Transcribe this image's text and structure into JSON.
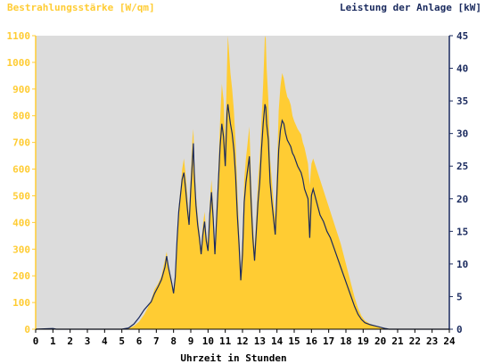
{
  "chart_data": {
    "type": "area",
    "title_left": "Bestrahlungsstärke [W/qm]",
    "title_right": "Leistung der Anlage [kW]",
    "xlabel": "Uhrzeit in Stunden",
    "x_ticks": [
      "0",
      "1",
      "2",
      "3",
      "4",
      "5",
      "6",
      "7",
      "8",
      "9",
      "10",
      "11",
      "12",
      "13",
      "14",
      "15",
      "16",
      "17",
      "18",
      "19",
      "20",
      "21",
      "22",
      "23",
      "24"
    ],
    "y_left_ticks": [
      "0",
      "100",
      "200",
      "300",
      "400",
      "500",
      "600",
      "700",
      "800",
      "900",
      "1000",
      "1100"
    ],
    "y_right_ticks": [
      "0",
      "5",
      "10",
      "15",
      "20",
      "25",
      "30",
      "35",
      "40",
      "45"
    ],
    "xlim": [
      0,
      24
    ],
    "ylim_left": [
      0,
      1100
    ],
    "ylim_right": [
      0,
      45
    ],
    "grid": false,
    "colors": {
      "plot_background": "#dcdcdc",
      "irradiance_fill": "#ffcc33",
      "power_line": "#1a2a5e",
      "left_axis_text": "#ffcc33",
      "right_axis_text": "#1a2a5e",
      "xaxis_text": "#000000"
    },
    "series": [
      {
        "name": "Bestrahlungsstärke [W/qm]",
        "axis": "left",
        "kind": "area",
        "points": [
          [
            0,
            0
          ],
          [
            0.5,
            0
          ],
          [
            1,
            2
          ],
          [
            1.2,
            0
          ],
          [
            5,
            0
          ],
          [
            5.4,
            3
          ],
          [
            5.7,
            12
          ],
          [
            6.0,
            28
          ],
          [
            6.3,
            55
          ],
          [
            6.5,
            80
          ],
          [
            6.7,
            110
          ],
          [
            6.9,
            150
          ],
          [
            7.1,
            170
          ],
          [
            7.3,
            200
          ],
          [
            7.5,
            260
          ],
          [
            7.6,
            290
          ],
          [
            7.7,
            240
          ],
          [
            7.9,
            180
          ],
          [
            8.0,
            140
          ],
          [
            8.1,
            200
          ],
          [
            8.2,
            350
          ],
          [
            8.3,
            460
          ],
          [
            8.4,
            520
          ],
          [
            8.5,
            600
          ],
          [
            8.6,
            640
          ],
          [
            8.7,
            580
          ],
          [
            8.8,
            500
          ],
          [
            8.9,
            420
          ],
          [
            9.0,
            580
          ],
          [
            9.1,
            720
          ],
          [
            9.15,
            750
          ],
          [
            9.2,
            640
          ],
          [
            9.3,
            500
          ],
          [
            9.4,
            430
          ],
          [
            9.5,
            370
          ],
          [
            9.6,
            300
          ],
          [
            9.7,
            390
          ],
          [
            9.8,
            440
          ],
          [
            9.9,
            360
          ],
          [
            10.0,
            320
          ],
          [
            10.1,
            470
          ],
          [
            10.2,
            560
          ],
          [
            10.3,
            460
          ],
          [
            10.4,
            300
          ],
          [
            10.5,
            450
          ],
          [
            10.6,
            600
          ],
          [
            10.7,
            780
          ],
          [
            10.8,
            920
          ],
          [
            10.9,
            860
          ],
          [
            11.0,
            700
          ],
          [
            11.1,
            980
          ],
          [
            11.15,
            1100
          ],
          [
            11.2,
            1060
          ],
          [
            11.3,
            960
          ],
          [
            11.4,
            900
          ],
          [
            11.5,
            820
          ],
          [
            11.6,
            700
          ],
          [
            11.7,
            520
          ],
          [
            11.8,
            380
          ],
          [
            11.9,
            220
          ],
          [
            12.0,
            340
          ],
          [
            12.1,
            560
          ],
          [
            12.2,
            640
          ],
          [
            12.3,
            700
          ],
          [
            12.4,
            760
          ],
          [
            12.5,
            560
          ],
          [
            12.6,
            400
          ],
          [
            12.7,
            300
          ],
          [
            12.8,
            420
          ],
          [
            12.9,
            560
          ],
          [
            13.0,
            640
          ],
          [
            13.1,
            780
          ],
          [
            13.2,
            920
          ],
          [
            13.3,
            1100
          ],
          [
            13.35,
            1090
          ],
          [
            13.4,
            980
          ],
          [
            13.5,
            860
          ],
          [
            13.6,
            640
          ],
          [
            13.7,
            560
          ],
          [
            13.8,
            480
          ],
          [
            13.9,
            420
          ],
          [
            14.0,
            600
          ],
          [
            14.1,
            820
          ],
          [
            14.2,
            910
          ],
          [
            14.3,
            960
          ],
          [
            14.4,
            940
          ],
          [
            14.5,
            900
          ],
          [
            14.6,
            870
          ],
          [
            14.7,
            860
          ],
          [
            14.8,
            840
          ],
          [
            14.9,
            800
          ],
          [
            15.0,
            780
          ],
          [
            15.2,
            750
          ],
          [
            15.4,
            730
          ],
          [
            15.5,
            700
          ],
          [
            15.6,
            680
          ],
          [
            15.8,
            620
          ],
          [
            15.9,
            540
          ],
          [
            16.0,
            620
          ],
          [
            16.1,
            640
          ],
          [
            16.3,
            600
          ],
          [
            16.5,
            560
          ],
          [
            16.7,
            520
          ],
          [
            16.9,
            480
          ],
          [
            17.1,
            440
          ],
          [
            17.3,
            400
          ],
          [
            17.5,
            360
          ],
          [
            17.7,
            320
          ],
          [
            17.9,
            270
          ],
          [
            18.1,
            220
          ],
          [
            18.3,
            170
          ],
          [
            18.5,
            120
          ],
          [
            18.7,
            80
          ],
          [
            18.9,
            50
          ],
          [
            19.1,
            32
          ],
          [
            19.4,
            20
          ],
          [
            19.7,
            12
          ],
          [
            20.0,
            6
          ],
          [
            20.3,
            2
          ],
          [
            20.5,
            0
          ],
          [
            24,
            0
          ]
        ]
      },
      {
        "name": "Leistung der Anlage [kW]",
        "axis": "right",
        "kind": "line",
        "points": [
          [
            0,
            0
          ],
          [
            1,
            0.1
          ],
          [
            1.2,
            0
          ],
          [
            5,
            0
          ],
          [
            5.4,
            0.2
          ],
          [
            5.7,
            0.8
          ],
          [
            6.0,
            1.8
          ],
          [
            6.3,
            3.0
          ],
          [
            6.5,
            3.6
          ],
          [
            6.7,
            4.2
          ],
          [
            6.9,
            5.5
          ],
          [
            7.1,
            6.5
          ],
          [
            7.3,
            7.6
          ],
          [
            7.5,
            9.5
          ],
          [
            7.6,
            11.2
          ],
          [
            7.7,
            9.5
          ],
          [
            7.9,
            7.0
          ],
          [
            8.0,
            5.5
          ],
          [
            8.1,
            8.0
          ],
          [
            8.2,
            13.5
          ],
          [
            8.3,
            18.0
          ],
          [
            8.4,
            20.5
          ],
          [
            8.5,
            23.0
          ],
          [
            8.6,
            24.0
          ],
          [
            8.7,
            21.5
          ],
          [
            8.8,
            18.5
          ],
          [
            8.9,
            16.0
          ],
          [
            9.0,
            21.5
          ],
          [
            9.1,
            26.0
          ],
          [
            9.15,
            28.5
          ],
          [
            9.2,
            24.0
          ],
          [
            9.3,
            19.0
          ],
          [
            9.4,
            16.0
          ],
          [
            9.5,
            14.0
          ],
          [
            9.6,
            11.5
          ],
          [
            9.7,
            14.5
          ],
          [
            9.8,
            16.5
          ],
          [
            9.9,
            13.5
          ],
          [
            10.0,
            12.0
          ],
          [
            10.1,
            17.5
          ],
          [
            10.2,
            21.0
          ],
          [
            10.3,
            17.0
          ],
          [
            10.4,
            11.5
          ],
          [
            10.5,
            17.0
          ],
          [
            10.6,
            22.5
          ],
          [
            10.7,
            28.0
          ],
          [
            10.8,
            31.5
          ],
          [
            10.9,
            29.5
          ],
          [
            11.0,
            25.0
          ],
          [
            11.1,
            33.0
          ],
          [
            11.15,
            34.5
          ],
          [
            11.2,
            33.5
          ],
          [
            11.3,
            31.5
          ],
          [
            11.4,
            30.0
          ],
          [
            11.5,
            27.5
          ],
          [
            11.6,
            23.5
          ],
          [
            11.7,
            17.5
          ],
          [
            11.8,
            13.0
          ],
          [
            11.9,
            7.5
          ],
          [
            12.0,
            11.5
          ],
          [
            12.1,
            19.5
          ],
          [
            12.2,
            22.5
          ],
          [
            12.3,
            24.5
          ],
          [
            12.4,
            26.5
          ],
          [
            12.5,
            19.5
          ],
          [
            12.6,
            14.0
          ],
          [
            12.7,
            10.5
          ],
          [
            12.8,
            15.0
          ],
          [
            12.9,
            19.5
          ],
          [
            13.0,
            22.5
          ],
          [
            13.1,
            27.5
          ],
          [
            13.2,
            31.5
          ],
          [
            13.3,
            34.5
          ],
          [
            13.35,
            34.0
          ],
          [
            13.4,
            31.5
          ],
          [
            13.5,
            29.0
          ],
          [
            13.6,
            22.5
          ],
          [
            13.7,
            19.5
          ],
          [
            13.8,
            17.0
          ],
          [
            13.9,
            14.5
          ],
          [
            14.0,
            21.0
          ],
          [
            14.1,
            27.5
          ],
          [
            14.2,
            30.5
          ],
          [
            14.3,
            32.0
          ],
          [
            14.4,
            31.5
          ],
          [
            14.5,
            30.0
          ],
          [
            14.6,
            29.0
          ],
          [
            14.7,
            28.5
          ],
          [
            14.8,
            28.0
          ],
          [
            14.9,
            27.0
          ],
          [
            15.0,
            26.5
          ],
          [
            15.2,
            25.0
          ],
          [
            15.4,
            24.0
          ],
          [
            15.5,
            23.0
          ],
          [
            15.6,
            21.5
          ],
          [
            15.8,
            20.0
          ],
          [
            15.9,
            14.0
          ],
          [
            16.0,
            20.5
          ],
          [
            16.1,
            21.5
          ],
          [
            16.3,
            19.5
          ],
          [
            16.5,
            17.5
          ],
          [
            16.7,
            16.5
          ],
          [
            16.9,
            15.0
          ],
          [
            17.1,
            14.0
          ],
          [
            17.3,
            12.5
          ],
          [
            17.5,
            11.0
          ],
          [
            17.7,
            9.5
          ],
          [
            17.9,
            8.0
          ],
          [
            18.1,
            6.5
          ],
          [
            18.3,
            5.0
          ],
          [
            18.5,
            3.5
          ],
          [
            18.7,
            2.3
          ],
          [
            18.9,
            1.5
          ],
          [
            19.1,
            1.0
          ],
          [
            19.4,
            0.7
          ],
          [
            19.7,
            0.5
          ],
          [
            20.0,
            0.3
          ],
          [
            20.3,
            0.1
          ],
          [
            20.5,
            0
          ],
          [
            24,
            0
          ]
        ]
      }
    ]
  }
}
